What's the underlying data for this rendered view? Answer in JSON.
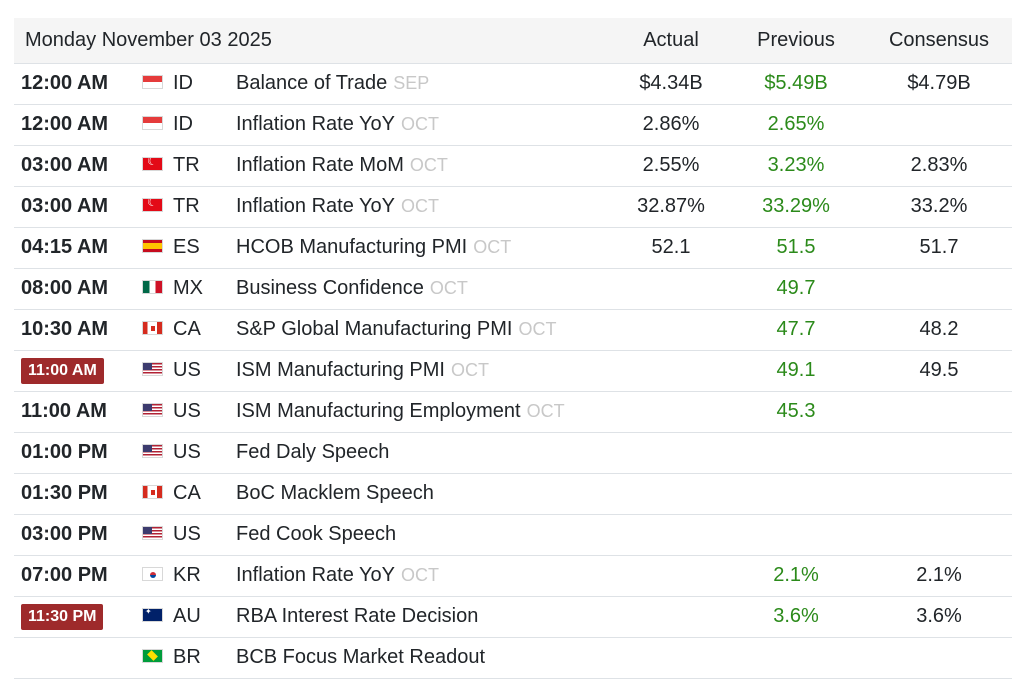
{
  "header": {
    "date": "Monday November 03 2025",
    "actual": "Actual",
    "previous": "Previous",
    "consensus": "Consensus"
  },
  "rows": [
    {
      "time": "12:00 AM",
      "highlight": false,
      "flag": "id",
      "country": "ID",
      "event": "Balance of Trade",
      "ref": "SEP",
      "actual": "$4.34B",
      "previous": "$5.49B",
      "consensus": "$4.79B"
    },
    {
      "time": "12:00 AM",
      "highlight": false,
      "flag": "id",
      "country": "ID",
      "event": "Inflation Rate YoY",
      "ref": "OCT",
      "actual": "2.86%",
      "previous": "2.65%",
      "consensus": ""
    },
    {
      "time": "03:00 AM",
      "highlight": false,
      "flag": "tr",
      "country": "TR",
      "event": "Inflation Rate MoM",
      "ref": "OCT",
      "actual": "2.55%",
      "previous": "3.23%",
      "consensus": "2.83%"
    },
    {
      "time": "03:00 AM",
      "highlight": false,
      "flag": "tr",
      "country": "TR",
      "event": "Inflation Rate YoY",
      "ref": "OCT",
      "actual": "32.87%",
      "previous": "33.29%",
      "consensus": "33.2%"
    },
    {
      "time": "04:15 AM",
      "highlight": false,
      "flag": "es",
      "country": "ES",
      "event": "HCOB Manufacturing PMI",
      "ref": "OCT",
      "actual": "52.1",
      "previous": "51.5",
      "consensus": "51.7"
    },
    {
      "time": "08:00 AM",
      "highlight": false,
      "flag": "mx",
      "country": "MX",
      "event": "Business Confidence",
      "ref": "OCT",
      "actual": "",
      "previous": "49.7",
      "consensus": ""
    },
    {
      "time": "10:30 AM",
      "highlight": false,
      "flag": "ca",
      "country": "CA",
      "event": "S&P Global Manufacturing PMI",
      "ref": "OCT",
      "actual": "",
      "previous": "47.7",
      "consensus": "48.2"
    },
    {
      "time": "11:00 AM",
      "highlight": true,
      "flag": "us",
      "country": "US",
      "event": "ISM Manufacturing PMI",
      "ref": "OCT",
      "actual": "",
      "previous": "49.1",
      "consensus": "49.5"
    },
    {
      "time": "11:00 AM",
      "highlight": false,
      "flag": "us",
      "country": "US",
      "event": "ISM Manufacturing Employment",
      "ref": "OCT",
      "actual": "",
      "previous": "45.3",
      "consensus": ""
    },
    {
      "time": "01:00 PM",
      "highlight": false,
      "flag": "us",
      "country": "US",
      "event": "Fed Daly Speech",
      "ref": "",
      "actual": "",
      "previous": "",
      "consensus": ""
    },
    {
      "time": "01:30 PM",
      "highlight": false,
      "flag": "ca",
      "country": "CA",
      "event": "BoC Macklem Speech",
      "ref": "",
      "actual": "",
      "previous": "",
      "consensus": ""
    },
    {
      "time": "03:00 PM",
      "highlight": false,
      "flag": "us",
      "country": "US",
      "event": "Fed Cook Speech",
      "ref": "",
      "actual": "",
      "previous": "",
      "consensus": ""
    },
    {
      "time": "07:00 PM",
      "highlight": false,
      "flag": "kr",
      "country": "KR",
      "event": "Inflation Rate YoY",
      "ref": "OCT",
      "actual": "",
      "previous": "2.1%",
      "consensus": "2.1%"
    },
    {
      "time": "11:30 PM",
      "highlight": true,
      "flag": "au",
      "country": "AU",
      "event": "RBA Interest Rate Decision",
      "ref": "",
      "actual": "",
      "previous": "3.6%",
      "consensus": "3.6%"
    },
    {
      "time": "",
      "highlight": false,
      "flag": "br",
      "country": "BR",
      "event": "BCB Focus Market Readout",
      "ref": "",
      "actual": "",
      "previous": "",
      "consensus": ""
    }
  ]
}
